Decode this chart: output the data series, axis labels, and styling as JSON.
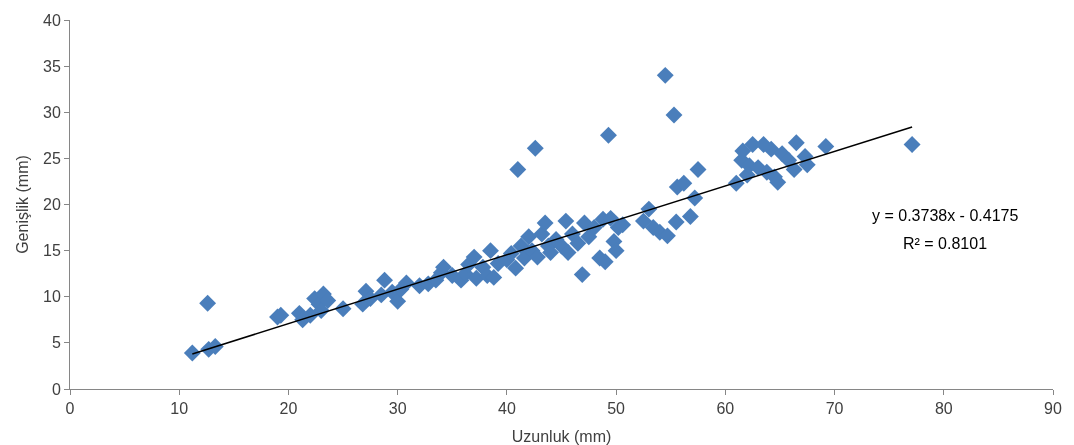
{
  "chart_data": {
    "type": "scatter",
    "xlabel": "Uzunluk (mm)",
    "ylabel": "Genişlik (mm)",
    "xlim": [
      0,
      90
    ],
    "xticks": [
      0,
      10,
      20,
      30,
      40,
      50,
      60,
      70,
      80,
      90
    ],
    "ylim": [
      0,
      40
    ],
    "yticks": [
      0,
      5,
      10,
      15,
      20,
      25,
      30,
      35,
      40
    ],
    "grid": false,
    "marker": "diamond",
    "annotations": [
      "y = 0.3738x - 0.4175",
      "R² = 0.8101"
    ],
    "series": [
      {
        "color": "#4a7ebb",
        "x": [
          11.2,
          12.6,
          12.7,
          13.3,
          19,
          19.3,
          21,
          21.3,
          22,
          22.4,
          22.8,
          23.2,
          23,
          23.6,
          25,
          26.8,
          27.1,
          27.5,
          28.5,
          28.8,
          29.5,
          30,
          30.3,
          30.8,
          32,
          32.8,
          33.5,
          34,
          34.2,
          35,
          35.8,
          36.2,
          36.5,
          37,
          37.2,
          37.8,
          38.2,
          38.5,
          38.8,
          39.2,
          40,
          40.4,
          40.8,
          41,
          41.3,
          41.6,
          42,
          42.3,
          42.6,
          42.8,
          43.2,
          43.5,
          43.8,
          44,
          44.5,
          45,
          45.4,
          45.6,
          46,
          46.5,
          46.9,
          47.1,
          47.5,
          48,
          48.5,
          48.8,
          49,
          49.3,
          49.5,
          49.8,
          50,
          50.2,
          50.6,
          52.5,
          53,
          53.4,
          54,
          54.5,
          54.7,
          55.3,
          55.5,
          55.6,
          56.2,
          56.8,
          57.2,
          57.5,
          61,
          61.5,
          61.6,
          62,
          62.2,
          62.5,
          63,
          63.5,
          63.8,
          64.2,
          64.5,
          64.8,
          65.2,
          65.8,
          66.3,
          66.5,
          67.3,
          67.5,
          69.2,
          77.1
        ],
        "values": [
          3.9,
          9.3,
          4.3,
          4.6,
          7.8,
          8,
          8.2,
          7.5,
          8,
          9.8,
          9.2,
          10.3,
          8.5,
          9.6,
          8.7,
          9.2,
          10.6,
          9.8,
          10.2,
          11.8,
          10.5,
          9.5,
          10.8,
          11.5,
          11.2,
          11.4,
          11.8,
          12.6,
          13.2,
          12.3,
          11.8,
          12.5,
          13.5,
          14.3,
          12,
          13.2,
          12.3,
          15,
          12.1,
          13.6,
          14,
          14.7,
          13.1,
          23.8,
          15.5,
          14.2,
          16.5,
          15,
          26.1,
          14.3,
          16.8,
          18,
          15.5,
          14.8,
          16.2,
          15.5,
          18.2,
          14.8,
          16.8,
          15.8,
          12.4,
          18,
          16.5,
          17.5,
          14.2,
          18.4,
          13.8,
          27.5,
          18.5,
          16,
          15,
          17.5,
          17.8,
          18.2,
          19.5,
          17.5,
          17,
          34,
          16.6,
          29.7,
          18.1,
          21.9,
          22.3,
          18.7,
          20.7,
          23.8,
          22.3,
          24.8,
          25.8,
          23.2,
          24.2,
          26.5,
          24,
          26.5,
          23.5,
          26,
          23,
          22.4,
          25.5,
          24.8,
          23.8,
          26.7,
          25.2,
          24.3,
          26.3,
          26.5
        ]
      },
      {
        "type": "line",
        "color": "#000000",
        "marker": "none",
        "x": [
          11.2,
          77.1
        ],
        "values": [
          3.8,
          28.4
        ]
      }
    ]
  }
}
